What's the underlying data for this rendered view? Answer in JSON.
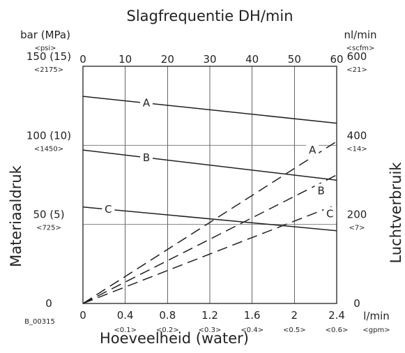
{
  "chart_data": {
    "type": "line",
    "title": "Slagfrequentie DH/min",
    "xlabel": "Hoeveelheid (water)",
    "ylabel_left": "Materiaaldruk",
    "ylabel_right": "Luchtverbruik",
    "figure_code": "B_00315",
    "top_axis": {
      "ticks": [
        "0",
        "10",
        "20",
        "30",
        "40",
        "50",
        "60"
      ],
      "unit": "DH/min",
      "range": [
        0,
        60
      ]
    },
    "bottom_axis": {
      "range": [
        0,
        2.4
      ],
      "ticks": [
        {
          "value": 0,
          "label": "0",
          "sub": ""
        },
        {
          "value": 0.4,
          "label": "0.4",
          "sub": "<0.1>"
        },
        {
          "value": 0.8,
          "label": "0.8",
          "sub": "<0.2>"
        },
        {
          "value": 1.2,
          "label": "1.2",
          "sub": "<0.3>"
        },
        {
          "value": 1.6,
          "label": "1.6",
          "sub": "<0.4>"
        },
        {
          "value": 2.0,
          "label": "2",
          "sub": "<0.5>"
        },
        {
          "value": 2.4,
          "label": "2.4",
          "sub": "<0.6>"
        }
      ],
      "unit": "l/min",
      "unit_sub": "<gpm>"
    },
    "left_axis": {
      "range": [
        0,
        150
      ],
      "unit": "bar (MPa)",
      "unit_sub": "<psi>",
      "ticks": [
        {
          "value": 0,
          "label": "0",
          "sub": ""
        },
        {
          "value": 50,
          "label": "50 (5)",
          "sub": "<725>"
        },
        {
          "value": 100,
          "label": "100 (10)",
          "sub": "<1450>"
        },
        {
          "value": 150,
          "label": "150 (15)",
          "sub": "<2175>"
        }
      ]
    },
    "right_axis": {
      "range": [
        0,
        600
      ],
      "unit": "nl/min",
      "unit_sub": "<scfm>",
      "ticks": [
        {
          "value": 0,
          "label": "0",
          "sub": ""
        },
        {
          "value": 200,
          "label": "200",
          "sub": "<7>"
        },
        {
          "value": 400,
          "label": "400",
          "sub": "<14>"
        },
        {
          "value": 600,
          "label": "600",
          "sub": "<21>"
        }
      ]
    },
    "grid": true,
    "series": [
      {
        "name": "A",
        "style": "solid",
        "axis": "left",
        "x": [
          0,
          2.4
        ],
        "y": [
          131,
          114
        ]
      },
      {
        "name": "B",
        "style": "solid",
        "axis": "left",
        "x": [
          0,
          2.4
        ],
        "y": [
          97,
          78
        ]
      },
      {
        "name": "C",
        "style": "solid",
        "axis": "left",
        "x": [
          0,
          2.4
        ],
        "y": [
          61,
          46
        ]
      },
      {
        "name": "A",
        "style": "dashed",
        "axis": "right",
        "x": [
          0,
          2.4
        ],
        "y": [
          0,
          410
        ]
      },
      {
        "name": "B",
        "style": "dashed",
        "axis": "right",
        "x": [
          0,
          2.4
        ],
        "y": [
          0,
          325
        ]
      },
      {
        "name": "C",
        "style": "dashed",
        "axis": "right",
        "x": [
          0,
          2.4
        ],
        "y": [
          0,
          250
        ]
      }
    ]
  }
}
